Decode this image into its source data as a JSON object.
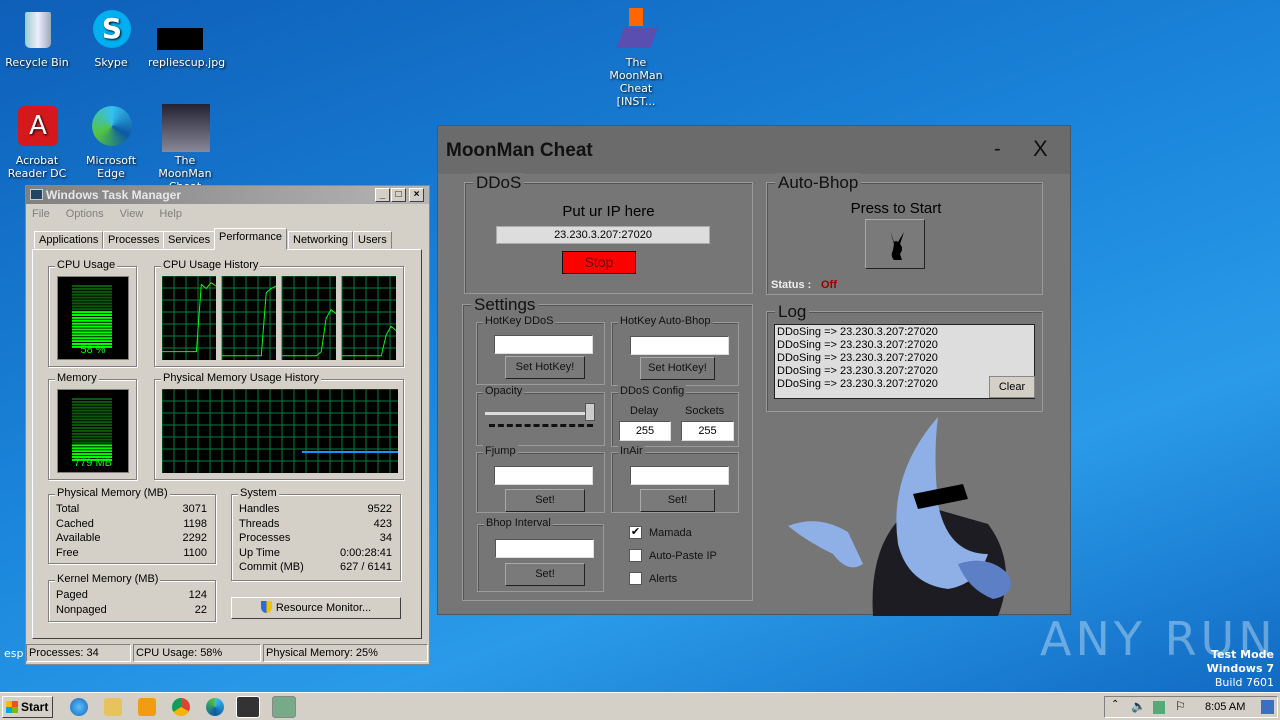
{
  "desktop": {
    "icons": [
      {
        "label": "Recycle Bin",
        "icon": "recycle-bin-icon"
      },
      {
        "label": "Skype",
        "icon": "skype-icon"
      },
      {
        "label": "repliescup.jpg",
        "icon": "image-file-icon"
      },
      {
        "label": "The MoonMan Cheat [INST...",
        "icon": "installer-icon"
      },
      {
        "label": "Acrobat Reader DC",
        "icon": "acrobat-icon"
      },
      {
        "label": "Microsoft Edge",
        "icon": "edge-icon"
      },
      {
        "label": "The MoonMan Cheat",
        "icon": "moonman-icon"
      }
    ],
    "partial_labels": [
      "esp"
    ],
    "watermark": "ANY RUN",
    "test_mode": [
      "Test Mode",
      "Windows 7",
      "Build 7601"
    ]
  },
  "task_manager": {
    "title": "Windows Task Manager",
    "menu": [
      "File",
      "Options",
      "View",
      "Help"
    ],
    "tabs": [
      "Applications",
      "Processes",
      "Services",
      "Performance",
      "Networking",
      "Users"
    ],
    "active_tab": "Performance",
    "cpu_usage_label": "CPU Usage",
    "cpu_usage_value": "58 %",
    "cpu_percent": 58,
    "cpu_history_label": "CPU Usage History",
    "cpu_history": [
      [
        10,
        10,
        10,
        10,
        10,
        10,
        10,
        10,
        90,
        85,
        92,
        88
      ],
      [
        5,
        5,
        5,
        5,
        5,
        5,
        5,
        5,
        5,
        80,
        85,
        88
      ],
      [
        5,
        5,
        5,
        5,
        5,
        5,
        5,
        5,
        10,
        50,
        60,
        55
      ],
      [
        5,
        5,
        5,
        5,
        5,
        5,
        5,
        5,
        5,
        30,
        40,
        35
      ]
    ],
    "memory_label": "Memory",
    "memory_value": "779 MB",
    "memory_percent": 25,
    "mem_history_label": "Physical Memory Usage History",
    "physical_memory": {
      "title": "Physical Memory (MB)",
      "rows": [
        [
          "Total",
          "3071"
        ],
        [
          "Cached",
          "1198"
        ],
        [
          "Available",
          "2292"
        ],
        [
          "Free",
          "1100"
        ]
      ]
    },
    "kernel_memory": {
      "title": "Kernel Memory (MB)",
      "rows": [
        [
          "Paged",
          "124"
        ],
        [
          "Nonpaged",
          "22"
        ]
      ]
    },
    "system": {
      "title": "System",
      "rows": [
        [
          "Handles",
          "9522"
        ],
        [
          "Threads",
          "423"
        ],
        [
          "Processes",
          "34"
        ],
        [
          "Up Time",
          "0:00:28:41"
        ],
        [
          "Commit (MB)",
          "627 / 6141"
        ]
      ]
    },
    "resource_monitor": "Resource Monitor...",
    "status": [
      "Processes: 34",
      "CPU Usage: 58%",
      "Physical Memory: 25%"
    ]
  },
  "moonman": {
    "title": "MoonMan Cheat",
    "minimize": "-",
    "close": "X",
    "ddos": {
      "title": "DDoS",
      "prompt": "Put ur IP here",
      "ip": "23.230.3.207:27020",
      "stop": "Stop"
    },
    "autobhop": {
      "title": "Auto-Bhop",
      "prompt": "Press to Start",
      "status_label": "Status :",
      "status_value": "Off"
    },
    "settings": {
      "title": "Settings",
      "hotkey_ddos": "HotKey DDoS",
      "hotkey_autobhop": "HotKey Auto-Bhop",
      "set_hotkey": "Set HotKey!",
      "opacity": "Opacity",
      "opacity_percent": 100,
      "ddos_config": "DDoS Config",
      "delay_label": "Delay",
      "delay": "255",
      "sockets_label": "Sockets",
      "sockets": "255",
      "fjump": "Fjump",
      "inair": "InAir",
      "bhop_interval": "Bhop Interval",
      "set": "Set!",
      "checks": [
        {
          "label": "Mamada",
          "checked": true
        },
        {
          "label": "Auto-Paste IP",
          "checked": false
        },
        {
          "label": "Alerts",
          "checked": false
        }
      ]
    },
    "log": {
      "title": "Log",
      "entries": [
        "DDoSing => 23.230.3.207:27020",
        "DDoSing => 23.230.3.207:27020",
        "DDoSing => 23.230.3.207:27020",
        "DDoSing => 23.230.3.207:27020",
        "DDoSing => 23.230.3.207:27020"
      ],
      "clear": "Clear"
    }
  },
  "taskbar": {
    "start": "Start",
    "clock": "8:05 AM"
  }
}
